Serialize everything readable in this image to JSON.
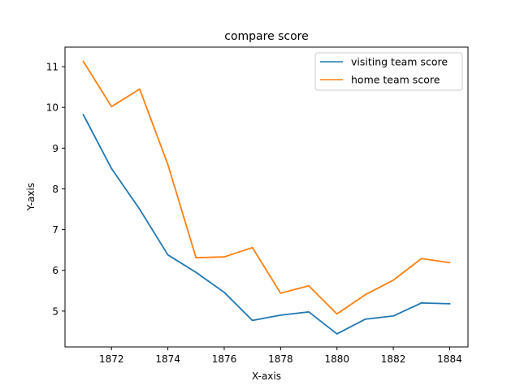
{
  "chart_data": {
    "type": "line",
    "title": "compare score",
    "xlabel": "X-axis",
    "ylabel": "Y-axis",
    "xlim": [
      1870.35,
      1884.65
    ],
    "ylim": [
      4.12,
      11.48
    ],
    "xticks": [
      1872,
      1874,
      1876,
      1878,
      1880,
      1882,
      1884
    ],
    "yticks": [
      5,
      6,
      7,
      8,
      9,
      10,
      11
    ],
    "grid": false,
    "legend_position": "top-right",
    "x": [
      1871,
      1872,
      1873,
      1874,
      1875,
      1876,
      1877,
      1878,
      1879,
      1880,
      1881,
      1882,
      1883,
      1884
    ],
    "series": [
      {
        "name": "visiting team score",
        "color": "#1f77b4",
        "values": [
          9.82,
          8.5,
          7.5,
          6.38,
          5.95,
          5.46,
          4.77,
          4.9,
          4.98,
          4.44,
          4.8,
          4.88,
          5.2,
          5.18
        ]
      },
      {
        "name": "home team score",
        "color": "#ff7f0e",
        "values": [
          11.13,
          10.02,
          10.45,
          8.6,
          6.31,
          6.33,
          6.56,
          5.44,
          5.62,
          4.93,
          5.4,
          5.76,
          6.29,
          6.19
        ]
      }
    ]
  }
}
